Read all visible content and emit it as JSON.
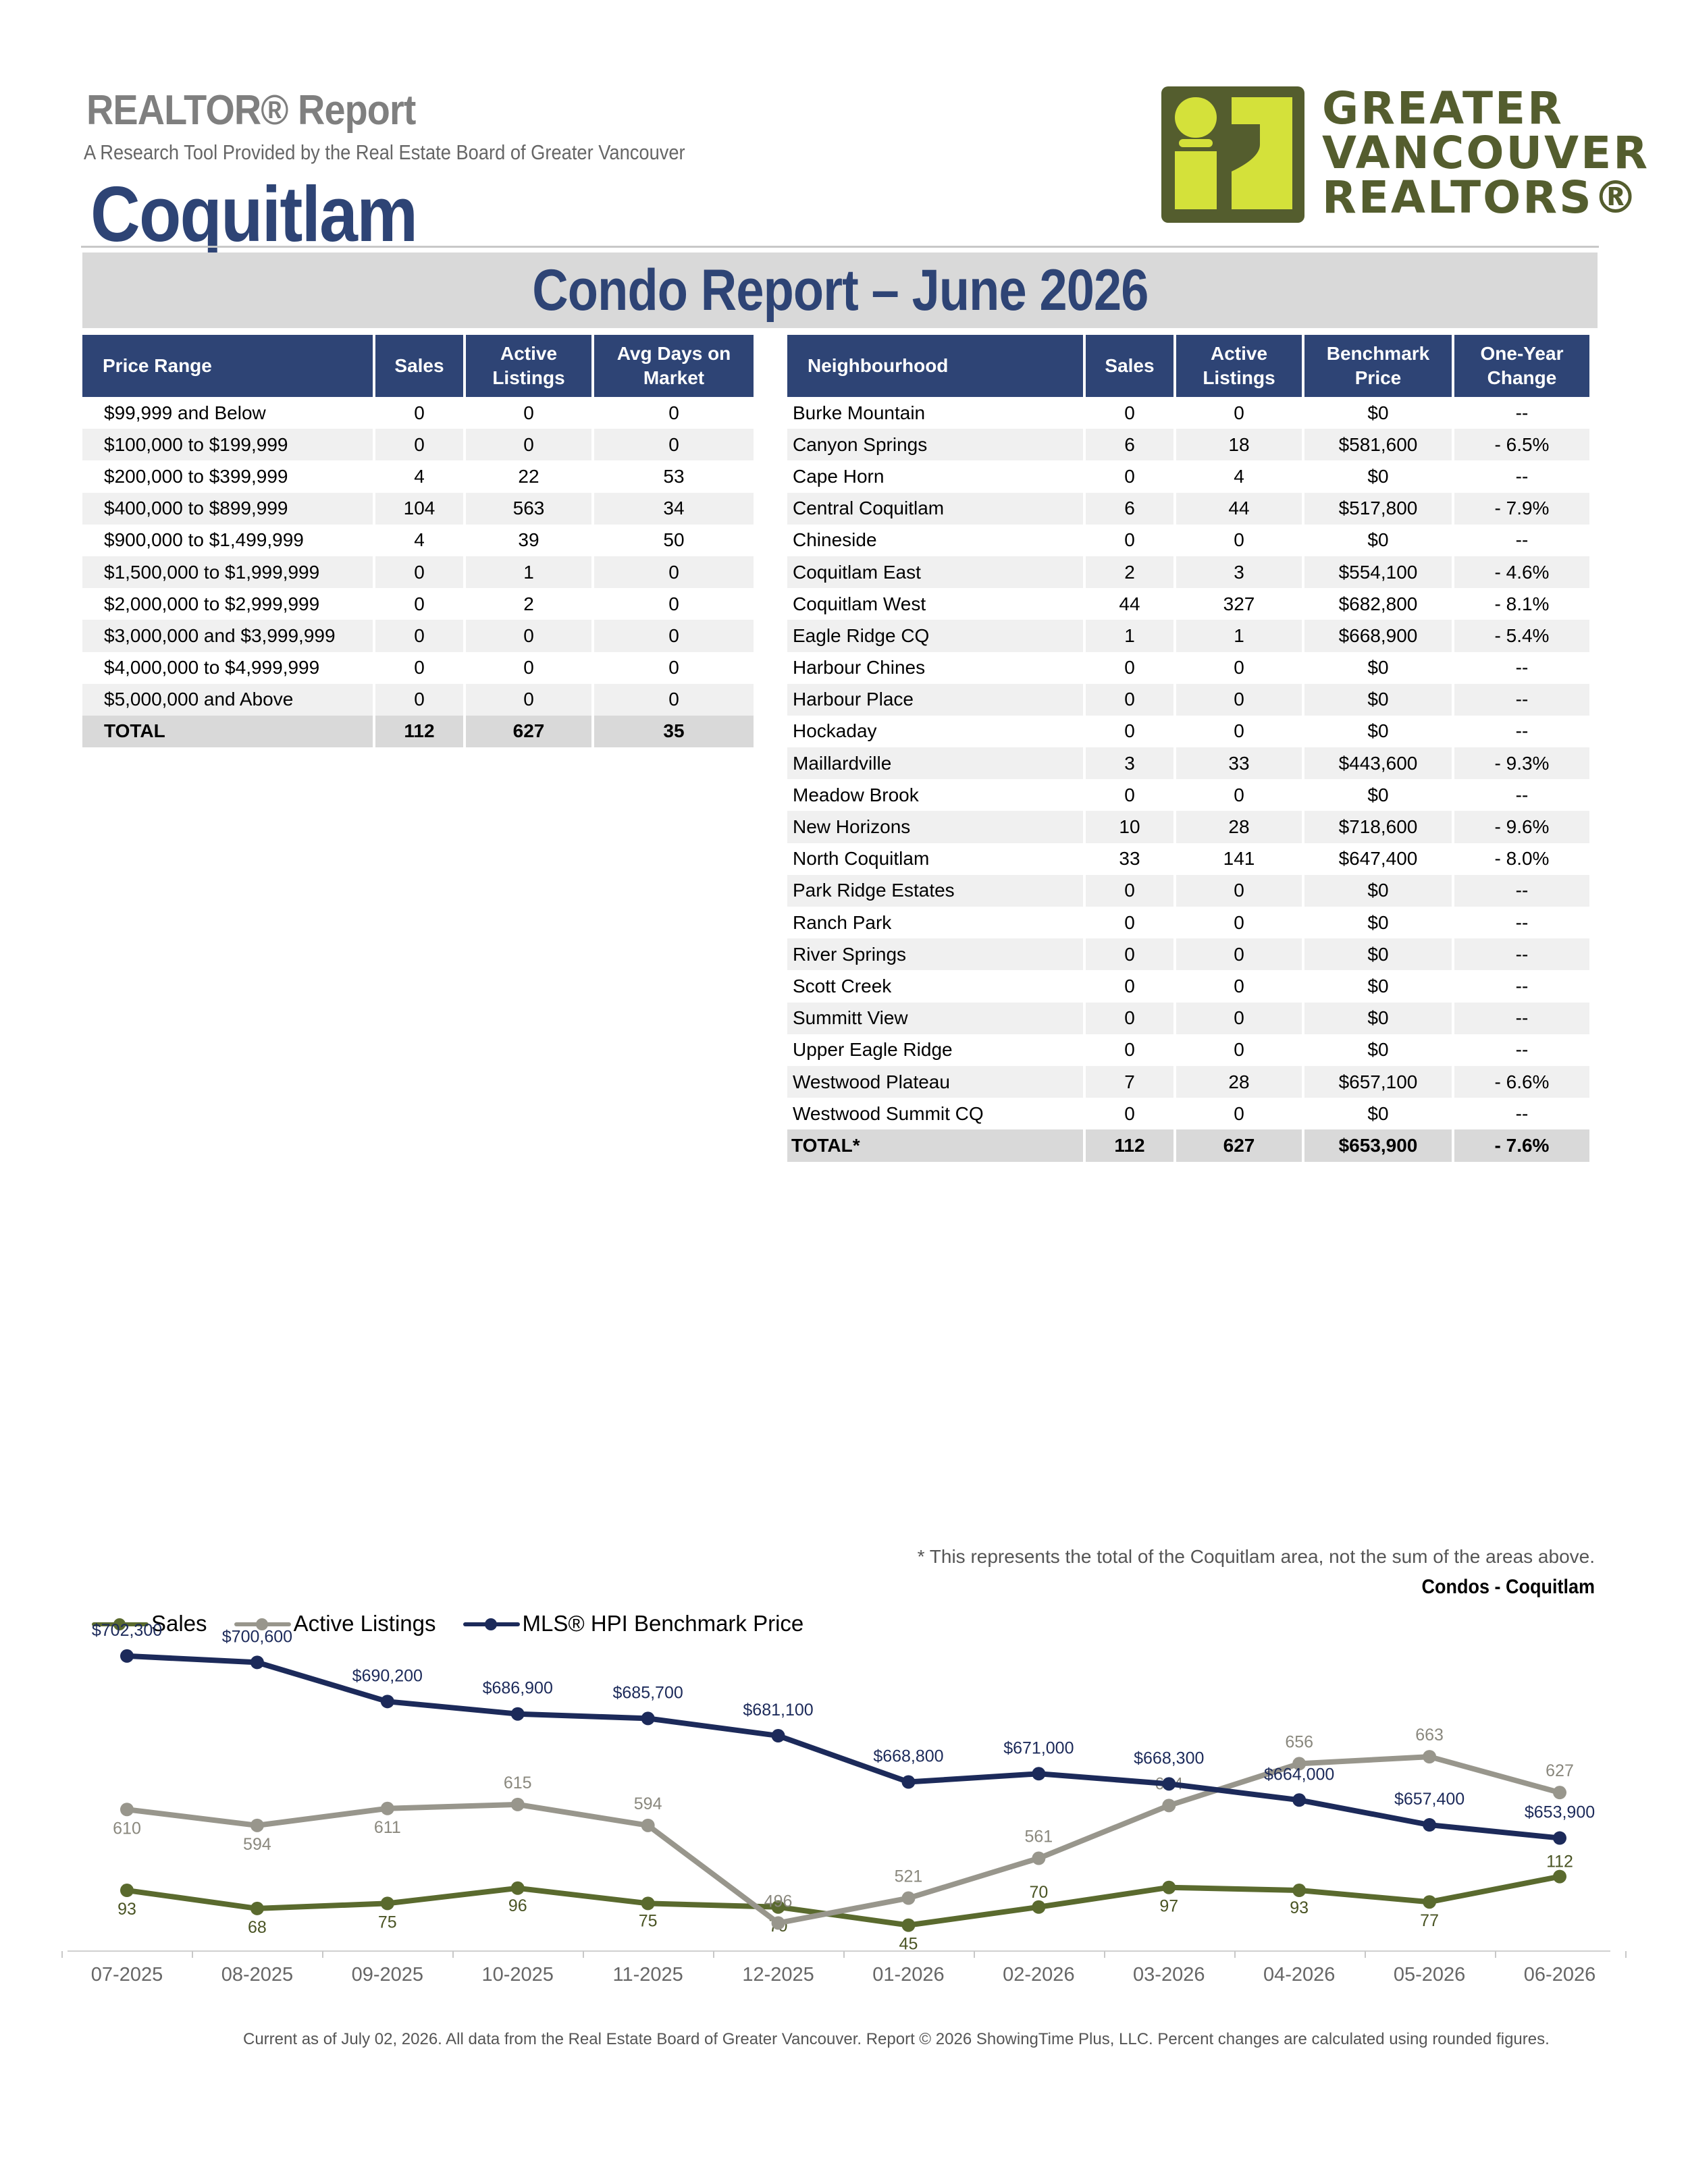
{
  "header": {
    "report_title": "REALTOR® Report",
    "subtitle": "A Research Tool Provided by the Real Estate Board of Greater Vancouver",
    "area": "Coquitlam",
    "logo_lines": [
      "GREATER",
      "VANCOUVER",
      "REALTORS®"
    ],
    "banner": "Condo Report – June 2026"
  },
  "price_table": {
    "columns": [
      "Price Range",
      "Sales",
      "Active Listings",
      "Avg Days on Market"
    ],
    "rows": [
      [
        "$99,999 and Below",
        "0",
        "0",
        "0"
      ],
      [
        "$100,000 to $199,999",
        "0",
        "0",
        "0"
      ],
      [
        "$200,000 to $399,999",
        "4",
        "22",
        "53"
      ],
      [
        "$400,000 to $899,999",
        "104",
        "563",
        "34"
      ],
      [
        "$900,000 to $1,499,999",
        "4",
        "39",
        "50"
      ],
      [
        "$1,500,000 to $1,999,999",
        "0",
        "1",
        "0"
      ],
      [
        "$2,000,000 to $2,999,999",
        "0",
        "2",
        "0"
      ],
      [
        "$3,000,000 and $3,999,999",
        "0",
        "0",
        "0"
      ],
      [
        "$4,000,000 to $4,999,999",
        "0",
        "0",
        "0"
      ],
      [
        "$5,000,000 and Above",
        "0",
        "0",
        "0"
      ]
    ],
    "total": [
      "TOTAL",
      "112",
      "627",
      "35"
    ]
  },
  "neighbourhood_table": {
    "columns": [
      "Neighbourhood",
      "Sales",
      "Active Listings",
      "Benchmark Price",
      "One-Year Change"
    ],
    "rows": [
      [
        "Burke Mountain",
        "0",
        "0",
        "$0",
        "--"
      ],
      [
        "Canyon Springs",
        "6",
        "18",
        "$581,600",
        "- 6.5%"
      ],
      [
        "Cape Horn",
        "0",
        "4",
        "$0",
        "--"
      ],
      [
        "Central Coquitlam",
        "6",
        "44",
        "$517,800",
        "- 7.9%"
      ],
      [
        "Chineside",
        "0",
        "0",
        "$0",
        "--"
      ],
      [
        "Coquitlam East",
        "2",
        "3",
        "$554,100",
        "- 4.6%"
      ],
      [
        "Coquitlam West",
        "44",
        "327",
        "$682,800",
        "- 8.1%"
      ],
      [
        "Eagle Ridge CQ",
        "1",
        "1",
        "$668,900",
        "- 5.4%"
      ],
      [
        "Harbour Chines",
        "0",
        "0",
        "$0",
        "--"
      ],
      [
        "Harbour Place",
        "0",
        "0",
        "$0",
        "--"
      ],
      [
        "Hockaday",
        "0",
        "0",
        "$0",
        "--"
      ],
      [
        "Maillardville",
        "3",
        "33",
        "$443,600",
        "- 9.3%"
      ],
      [
        "Meadow Brook",
        "0",
        "0",
        "$0",
        "--"
      ],
      [
        "New Horizons",
        "10",
        "28",
        "$718,600",
        "- 9.6%"
      ],
      [
        "North Coquitlam",
        "33",
        "141",
        "$647,400",
        "- 8.0%"
      ],
      [
        "Park Ridge Estates",
        "0",
        "0",
        "$0",
        "--"
      ],
      [
        "Ranch Park",
        "0",
        "0",
        "$0",
        "--"
      ],
      [
        "River Springs",
        "0",
        "0",
        "$0",
        "--"
      ],
      [
        "Scott Creek",
        "0",
        "0",
        "$0",
        "--"
      ],
      [
        "Summitt View",
        "0",
        "0",
        "$0",
        "--"
      ],
      [
        "Upper Eagle Ridge",
        "0",
        "0",
        "$0",
        "--"
      ],
      [
        "Westwood Plateau",
        "7",
        "28",
        "$657,100",
        "- 6.6%"
      ],
      [
        "Westwood Summit CQ",
        "0",
        "0",
        "$0",
        "--"
      ]
    ],
    "total": [
      "TOTAL*",
      "112",
      "627",
      "$653,900",
      "- 7.6%"
    ]
  },
  "footnote": "* This represents the total of the Coquitlam area, not the sum of the areas above.",
  "chart_title": "Condos - Coquitlam",
  "chart_data": {
    "type": "line",
    "categories": [
      "07-2025",
      "08-2025",
      "09-2025",
      "10-2025",
      "11-2025",
      "12-2025",
      "01-2026",
      "02-2026",
      "03-2026",
      "04-2026",
      "05-2026",
      "06-2026"
    ],
    "series": [
      {
        "name": "Sales",
        "color": "#5a6a2e",
        "values": [
          93,
          68,
          75,
          96,
          75,
          70,
          45,
          70,
          97,
          93,
          77,
          112
        ],
        "labels": [
          "93",
          "68",
          "75",
          "96",
          "75",
          "70",
          "45",
          "70",
          "97",
          "93",
          "77",
          "112"
        ]
      },
      {
        "name": "Active Listings",
        "color": "#98968c",
        "values": [
          610,
          594,
          611,
          615,
          594,
          496,
          521,
          561,
          614,
          656,
          663,
          627
        ],
        "labels": [
          "610",
          "594",
          "611",
          "615",
          "594",
          "496",
          "521",
          "561",
          "614",
          "656",
          "663",
          "627"
        ]
      },
      {
        "name": "MLS® HPI Benchmark Price",
        "color": "#1c2a5a",
        "values": [
          702300,
          700600,
          690200,
          686900,
          685700,
          681100,
          668800,
          671000,
          668300,
          664000,
          657400,
          653900
        ],
        "labels": [
          "$702,300",
          "$700,600",
          "$690,200",
          "$686,900",
          "$685,700",
          "$681,100",
          "$668,800",
          "$671,000",
          "$668,300",
          "$664,000",
          "$657,400",
          "$653,900"
        ]
      }
    ]
  },
  "footer": "Current as of July 02, 2026. All data from the Real Estate Board of Greater Vancouver.  Report © 2026 ShowingTime Plus, LLC. Percent changes are calculated using rounded figures."
}
